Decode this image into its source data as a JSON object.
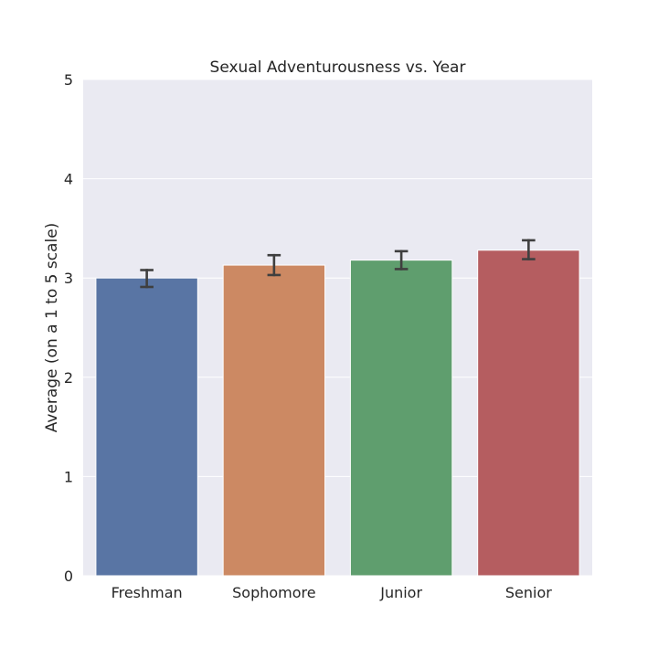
{
  "chart_data": {
    "type": "bar",
    "title": "Sexual Adventurousness vs. Year",
    "xlabel": "",
    "ylabel": "Average (on a 1 to 5 scale)",
    "categories": [
      "Freshman",
      "Sophomore",
      "Junior",
      "Senior"
    ],
    "values": [
      3.0,
      3.13,
      3.18,
      3.28
    ],
    "error_low": [
      2.91,
      3.03,
      3.09,
      3.19
    ],
    "error_high": [
      3.08,
      3.23,
      3.27,
      3.38
    ],
    "ylim": [
      0,
      5
    ],
    "yticks": [
      "0",
      "1",
      "2",
      "3",
      "4",
      "5"
    ],
    "grid": true,
    "colors": [
      "#5975a4",
      "#cc8963",
      "#5f9e6e",
      "#b55d60"
    ],
    "background_color": "#eaeaf2",
    "error_color": "#3f3f3f"
  }
}
